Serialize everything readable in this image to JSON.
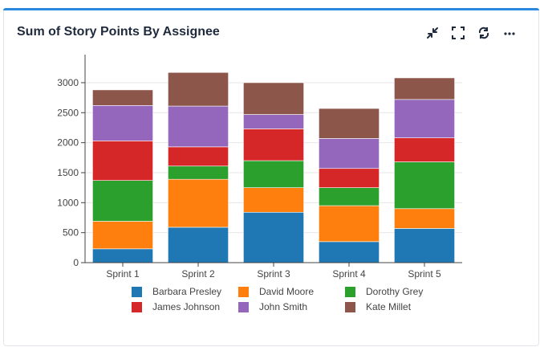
{
  "header": {
    "title": "Sum of Story Points By Assignee",
    "icons": [
      "collapse-icon",
      "fullscreen-icon",
      "refresh-icon",
      "more-icon"
    ]
  },
  "chart_data": {
    "type": "bar",
    "stacked": true,
    "title": "Sum of Story Points By Assignee",
    "xlabel": "",
    "ylabel": "",
    "ylim": [
      0,
      3200
    ],
    "yticks": [
      0,
      500,
      1000,
      1500,
      2000,
      2500,
      3000
    ],
    "grid": true,
    "legend_position": "bottom",
    "categories": [
      "Sprint 1",
      "Sprint 2",
      "Sprint 3",
      "Sprint 4",
      "Sprint 5"
    ],
    "series": [
      {
        "name": "Barbara Presley",
        "color": "#1f77b4",
        "values": [
          230,
          590,
          840,
          350,
          570
        ]
      },
      {
        "name": "David Moore",
        "color": "#ff7f0e",
        "values": [
          460,
          800,
          410,
          600,
          330
        ]
      },
      {
        "name": "Dorothy Grey",
        "color": "#2ca02c",
        "values": [
          680,
          220,
          450,
          300,
          780
        ]
      },
      {
        "name": "James Johnson",
        "color": "#d62728",
        "values": [
          660,
          320,
          530,
          320,
          400
        ]
      },
      {
        "name": "John Smith",
        "color": "#9467bd",
        "values": [
          590,
          680,
          240,
          500,
          640
        ]
      },
      {
        "name": "Kate Millet",
        "color": "#8c564b",
        "values": [
          260,
          560,
          530,
          500,
          360
        ]
      }
    ]
  }
}
